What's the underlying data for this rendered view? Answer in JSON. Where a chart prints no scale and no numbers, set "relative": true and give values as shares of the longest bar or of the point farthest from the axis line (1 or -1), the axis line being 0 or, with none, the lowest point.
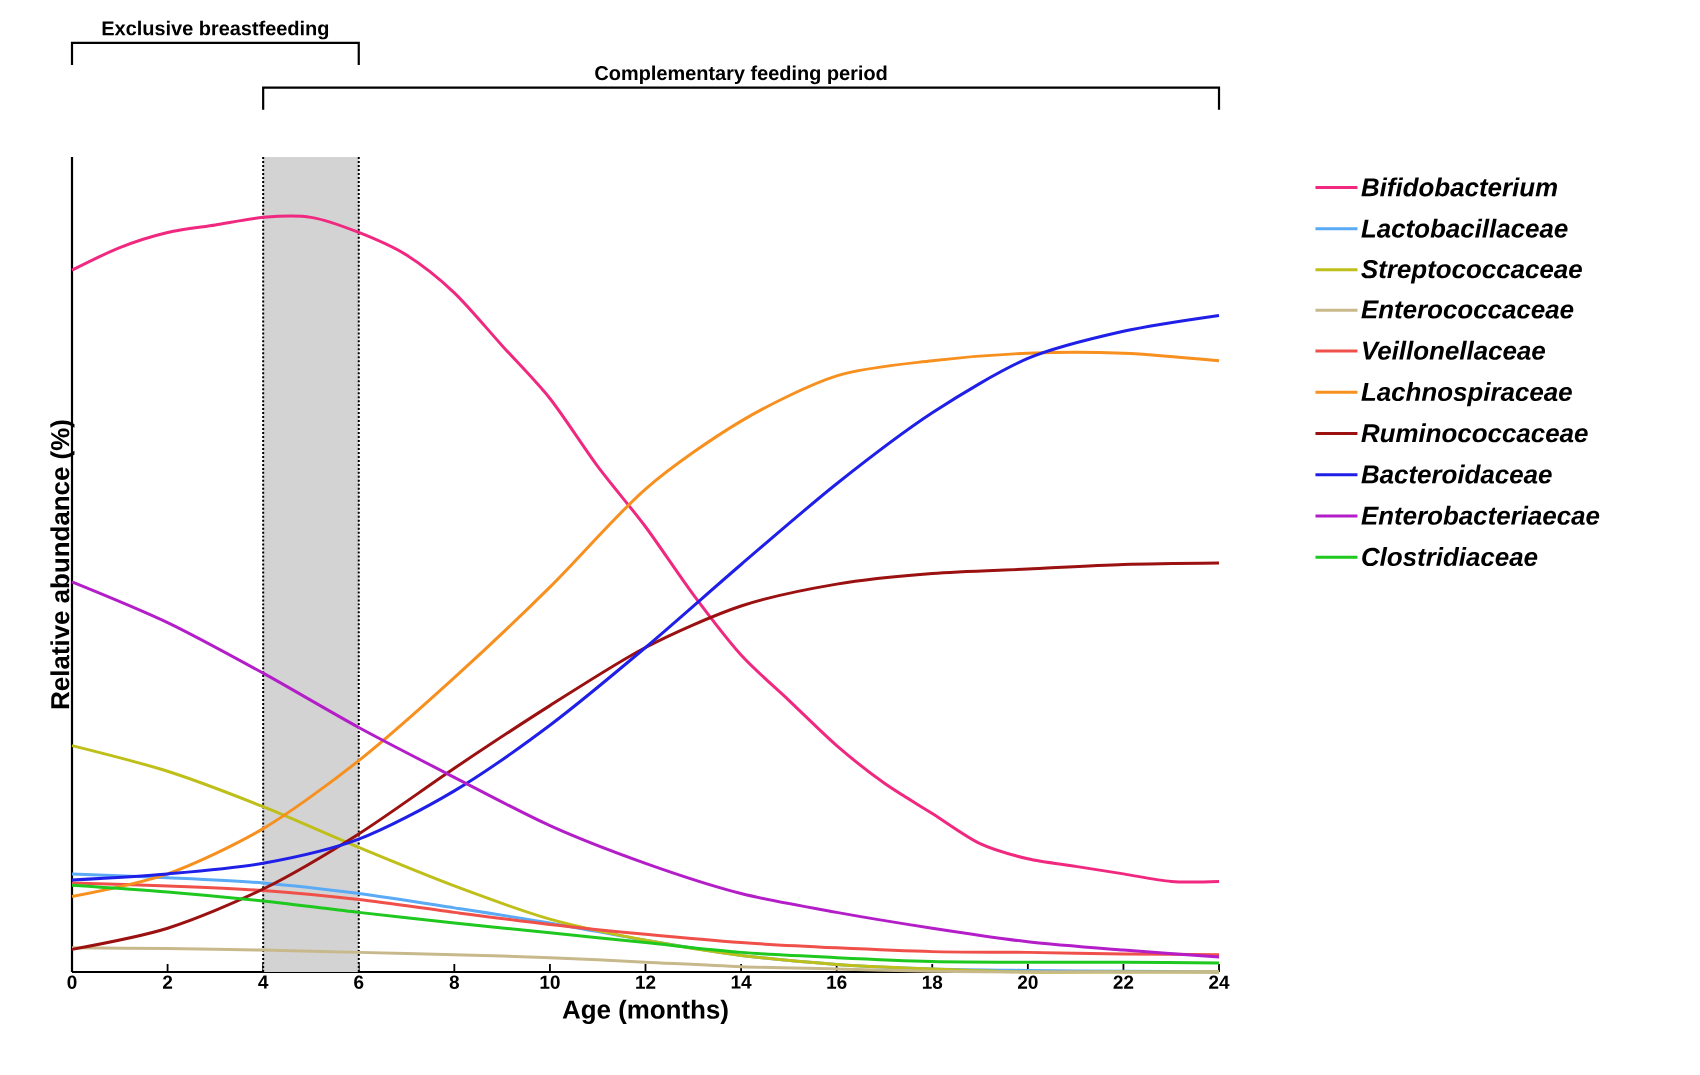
{
  "chart_data": {
    "type": "line",
    "relative": true,
    "xlabel": "Age (months)",
    "ylabel": "Relative abundance (%)",
    "xlim": [
      0,
      24
    ],
    "xticks": [
      0,
      2,
      4,
      6,
      8,
      10,
      12,
      14,
      16,
      18,
      20,
      22,
      24
    ],
    "legend": "right",
    "bands": [
      {
        "axis": "x",
        "from": 4,
        "to": 6,
        "color": "#d3d3d3"
      }
    ],
    "annotations": [
      "Exclusive breastfeeding",
      "Complementary feeding period"
    ],
    "series": [
      {
        "name": "Bifidobacterium",
        "color": "#f0287f",
        "x": [
          0,
          1,
          2,
          3,
          4,
          5,
          6,
          7,
          8,
          9,
          10,
          11,
          12,
          13,
          14,
          15,
          16,
          17,
          18,
          19,
          20,
          21,
          22,
          23,
          24
        ],
        "values": [
          0.93,
          0.96,
          0.98,
          0.99,
          1.0,
          1.0,
          0.98,
          0.95,
          0.9,
          0.83,
          0.76,
          0.67,
          0.59,
          0.5,
          0.42,
          0.36,
          0.3,
          0.25,
          0.21,
          0.17,
          0.15,
          0.14,
          0.13,
          0.12,
          0.12
        ]
      },
      {
        "name": "Lactobacillaceae",
        "color": "#5aaaf5",
        "x": [
          0,
          2,
          4,
          6,
          8,
          10,
          12,
          14,
          16,
          18,
          20,
          22,
          24
        ],
        "values": [
          0.13,
          0.125,
          0.118,
          0.104,
          0.085,
          0.065,
          0.042,
          0.022,
          0.01,
          0.004,
          0.002,
          0.001,
          0.0
        ]
      },
      {
        "name": "Streptococcaceae",
        "color": "#bfbf1a",
        "x": [
          0,
          2,
          4,
          6,
          8,
          10,
          12,
          14,
          16,
          18,
          20,
          22,
          24
        ],
        "values": [
          0.3,
          0.266,
          0.219,
          0.165,
          0.114,
          0.07,
          0.042,
          0.022,
          0.01,
          0.004,
          0.0,
          0.0,
          0.0
        ]
      },
      {
        "name": "Enterococcaceae",
        "color": "#c8b98c",
        "x": [
          0,
          2,
          4,
          6,
          8,
          10,
          12,
          14,
          16,
          18,
          20,
          22,
          24
        ],
        "values": [
          0.032,
          0.031,
          0.029,
          0.026,
          0.023,
          0.019,
          0.013,
          0.007,
          0.004,
          0.001,
          0.0,
          0.0,
          0.0
        ]
      },
      {
        "name": "Veillonellaceae",
        "color": "#f0504a",
        "x": [
          0,
          2,
          4,
          6,
          8,
          10,
          12,
          14,
          16,
          18,
          20,
          22,
          24
        ],
        "values": [
          0.118,
          0.114,
          0.108,
          0.096,
          0.079,
          0.063,
          0.05,
          0.039,
          0.032,
          0.027,
          0.026,
          0.024,
          0.023
        ]
      },
      {
        "name": "Lachnospiraceae",
        "color": "#f7901e",
        "x": [
          0,
          2,
          4,
          6,
          8,
          10,
          12,
          14,
          16,
          18,
          20,
          22,
          24
        ],
        "values": [
          0.1,
          0.13,
          0.19,
          0.28,
          0.39,
          0.51,
          0.64,
          0.73,
          0.79,
          0.81,
          0.82,
          0.82,
          0.81
        ]
      },
      {
        "name": "Ruminococcaceae",
        "color": "#9b1010",
        "x": [
          0,
          2,
          4,
          6,
          8,
          10,
          12,
          14,
          16,
          18,
          20,
          22,
          24
        ],
        "values": [
          0.03,
          0.058,
          0.11,
          0.183,
          0.27,
          0.353,
          0.43,
          0.485,
          0.514,
          0.528,
          0.534,
          0.54,
          0.542
        ]
      },
      {
        "name": "Bacteroidaceae",
        "color": "#1f1fe8",
        "x": [
          0,
          2,
          4,
          6,
          8,
          10,
          12,
          14,
          16,
          18,
          20,
          22,
          24
        ],
        "values": [
          0.122,
          0.13,
          0.144,
          0.176,
          0.24,
          0.327,
          0.43,
          0.54,
          0.647,
          0.741,
          0.813,
          0.849,
          0.87
        ]
      },
      {
        "name": "Enterobacteriaecae",
        "color": "#b31ec8",
        "x": [
          0,
          2,
          4,
          6,
          8,
          10,
          12,
          14,
          16,
          18,
          20,
          22,
          24
        ],
        "values": [
          0.517,
          0.463,
          0.396,
          0.324,
          0.258,
          0.194,
          0.144,
          0.104,
          0.079,
          0.058,
          0.04,
          0.029,
          0.02
        ]
      },
      {
        "name": "Clostridiaceae",
        "color": "#1ec81e",
        "x": [
          0,
          2,
          4,
          6,
          8,
          10,
          12,
          14,
          16,
          18,
          20,
          22,
          24
        ],
        "values": [
          0.115,
          0.106,
          0.094,
          0.079,
          0.065,
          0.052,
          0.039,
          0.026,
          0.019,
          0.014,
          0.013,
          0.013,
          0.012
        ]
      }
    ]
  }
}
